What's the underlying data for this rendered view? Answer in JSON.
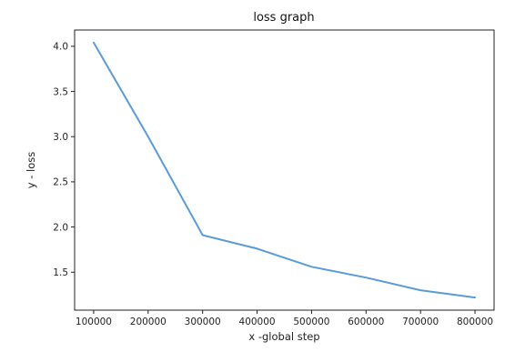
{
  "chart_data": {
    "type": "line",
    "title": "loss graph",
    "xlabel": "x -global step",
    "ylabel": "y - loss",
    "x": [
      100000,
      200000,
      300000,
      400000,
      500000,
      600000,
      700000,
      800000
    ],
    "series": [
      {
        "values": [
          4.04,
          3.0,
          1.91,
          1.76,
          1.56,
          1.44,
          1.3,
          1.22
        ],
        "color": "#5b9bd5"
      }
    ],
    "x_ticks": [
      "100000",
      "200000",
      "300000",
      "400000",
      "500000",
      "600000",
      "700000",
      "800000"
    ],
    "y_ticks": [
      "1.5",
      "2.0",
      "2.5",
      "3.0",
      "3.5",
      "4.0"
    ],
    "xlim": [
      65000,
      835000
    ],
    "ylim": [
      1.08,
      4.18
    ],
    "grid": false,
    "legend": "none"
  }
}
